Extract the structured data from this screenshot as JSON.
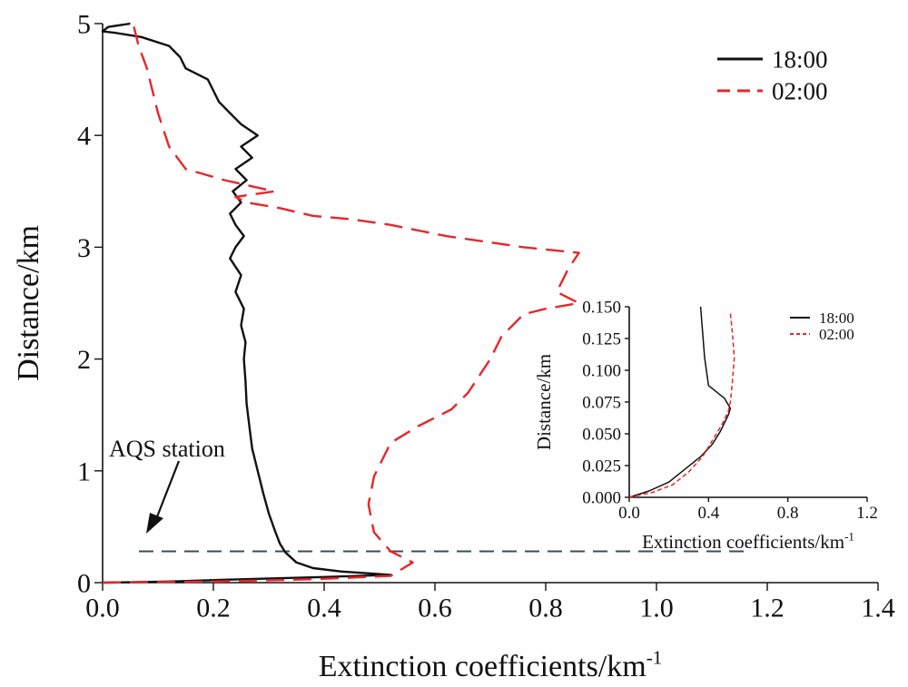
{
  "chart_data": [
    {
      "type": "line",
      "xlabel": "Extinction coefficients/km",
      "xlabel_sup": "-1",
      "ylabel": "Distance/km",
      "xlim": [
        0.0,
        1.4
      ],
      "ylim": [
        0,
        5
      ],
      "xticks": [
        "0.0",
        "0.2",
        "0.4",
        "0.6",
        "0.8",
        "1.0",
        "1.2",
        "1.4"
      ],
      "yticks": [
        "0",
        "1",
        "2",
        "3",
        "4",
        "5"
      ],
      "legend_position": "top-right",
      "annotation": {
        "text": "AQS station",
        "points_to_y": 0.28
      },
      "reference_line": {
        "y": 0.28,
        "style": "dashed",
        "color": "#3d4f54"
      },
      "series": [
        {
          "name": "18:00",
          "color": "#111111",
          "style": "solid",
          "points": [
            [
              0.0,
              0.0
            ],
            [
              0.12,
              0.01
            ],
            [
              0.25,
              0.03
            ],
            [
              0.4,
              0.05
            ],
            [
              0.52,
              0.07
            ],
            [
              0.43,
              0.1
            ],
            [
              0.38,
              0.13
            ],
            [
              0.35,
              0.18
            ],
            [
              0.33,
              0.27
            ],
            [
              0.32,
              0.35
            ],
            [
              0.31,
              0.48
            ],
            [
              0.3,
              0.62
            ],
            [
              0.29,
              0.8
            ],
            [
              0.28,
              1.0
            ],
            [
              0.27,
              1.2
            ],
            [
              0.265,
              1.4
            ],
            [
              0.26,
              1.6
            ],
            [
              0.258,
              1.8
            ],
            [
              0.255,
              2.0
            ],
            [
              0.258,
              2.15
            ],
            [
              0.25,
              2.3
            ],
            [
              0.255,
              2.45
            ],
            [
              0.24,
              2.6
            ],
            [
              0.25,
              2.75
            ],
            [
              0.23,
              2.9
            ],
            [
              0.24,
              3.0
            ],
            [
              0.255,
              3.1
            ],
            [
              0.24,
              3.2
            ],
            [
              0.23,
              3.3
            ],
            [
              0.25,
              3.4
            ],
            [
              0.235,
              3.5
            ],
            [
              0.26,
              3.6
            ],
            [
              0.24,
              3.7
            ],
            [
              0.27,
              3.8
            ],
            [
              0.25,
              3.9
            ],
            [
              0.28,
              4.0
            ],
            [
              0.25,
              4.1
            ],
            [
              0.23,
              4.2
            ],
            [
              0.21,
              4.3
            ],
            [
              0.2,
              4.4
            ],
            [
              0.19,
              4.5
            ],
            [
              0.15,
              4.6
            ],
            [
              0.14,
              4.7
            ],
            [
              0.12,
              4.8
            ],
            [
              0.07,
              4.88
            ],
            [
              0.02,
              4.92
            ],
            [
              0.0,
              4.93
            ],
            [
              0.01,
              4.97
            ],
            [
              0.05,
              5.0
            ]
          ]
        },
        {
          "name": "02:00",
          "color": "#e8262a",
          "style": "dashed",
          "points": [
            [
              0.0,
              0.0
            ],
            [
              0.2,
              0.01
            ],
            [
              0.38,
              0.03
            ],
            [
              0.52,
              0.06
            ],
            [
              0.56,
              0.18
            ],
            [
              0.52,
              0.28
            ],
            [
              0.49,
              0.45
            ],
            [
              0.48,
              0.7
            ],
            [
              0.49,
              0.95
            ],
            [
              0.52,
              1.25
            ],
            [
              0.57,
              1.4
            ],
            [
              0.63,
              1.55
            ],
            [
              0.66,
              1.7
            ],
            [
              0.7,
              2.0
            ],
            [
              0.72,
              2.2
            ],
            [
              0.76,
              2.4
            ],
            [
              0.8,
              2.45
            ],
            [
              0.86,
              2.5
            ],
            [
              0.82,
              2.6
            ],
            [
              0.84,
              2.8
            ],
            [
              0.86,
              2.95
            ],
            [
              0.76,
              3.0
            ],
            [
              0.62,
              3.1
            ],
            [
              0.52,
              3.2
            ],
            [
              0.45,
              3.25
            ],
            [
              0.38,
              3.28
            ],
            [
              0.32,
              3.35
            ],
            [
              0.26,
              3.4
            ],
            [
              0.24,
              3.45
            ],
            [
              0.31,
              3.5
            ],
            [
              0.22,
              3.6
            ],
            [
              0.15,
              3.7
            ],
            [
              0.12,
              3.9
            ],
            [
              0.1,
              4.2
            ],
            [
              0.08,
              4.6
            ],
            [
              0.065,
              4.8
            ],
            [
              0.055,
              5.0
            ]
          ]
        }
      ]
    },
    {
      "type": "line",
      "xlabel": "Extinction coefficients/km",
      "xlabel_sup": "-1",
      "ylabel": "Distance/km",
      "xlim": [
        0.0,
        1.2
      ],
      "ylim": [
        0.0,
        0.15
      ],
      "xticks": [
        "0.0",
        "0.4",
        "0.8",
        "1.2"
      ],
      "yticks": [
        "0.000",
        "0.025",
        "0.050",
        "0.075",
        "0.100",
        "0.125",
        "0.150"
      ],
      "legend_position": "top-right",
      "series": [
        {
          "name": "18:00",
          "color": "#111111",
          "style": "solid",
          "points": [
            [
              0.0,
              0.0
            ],
            [
              0.1,
              0.005
            ],
            [
              0.2,
              0.012
            ],
            [
              0.28,
              0.022
            ],
            [
              0.36,
              0.032
            ],
            [
              0.42,
              0.042
            ],
            [
              0.46,
              0.052
            ],
            [
              0.5,
              0.065
            ],
            [
              0.51,
              0.07
            ],
            [
              0.48,
              0.078
            ],
            [
              0.4,
              0.088
            ],
            [
              0.38,
              0.11
            ],
            [
              0.37,
              0.13
            ],
            [
              0.36,
              0.15
            ]
          ]
        },
        {
          "name": "02:00",
          "color": "#e8262a",
          "style": "dashed",
          "points": [
            [
              0.0,
              0.0
            ],
            [
              0.12,
              0.004
            ],
            [
              0.22,
              0.01
            ],
            [
              0.3,
              0.02
            ],
            [
              0.37,
              0.032
            ],
            [
              0.42,
              0.045
            ],
            [
              0.47,
              0.058
            ],
            [
              0.5,
              0.068
            ],
            [
              0.51,
              0.075
            ],
            [
              0.52,
              0.09
            ],
            [
              0.53,
              0.11
            ],
            [
              0.52,
              0.13
            ],
            [
              0.51,
              0.145
            ]
          ]
        }
      ]
    }
  ]
}
